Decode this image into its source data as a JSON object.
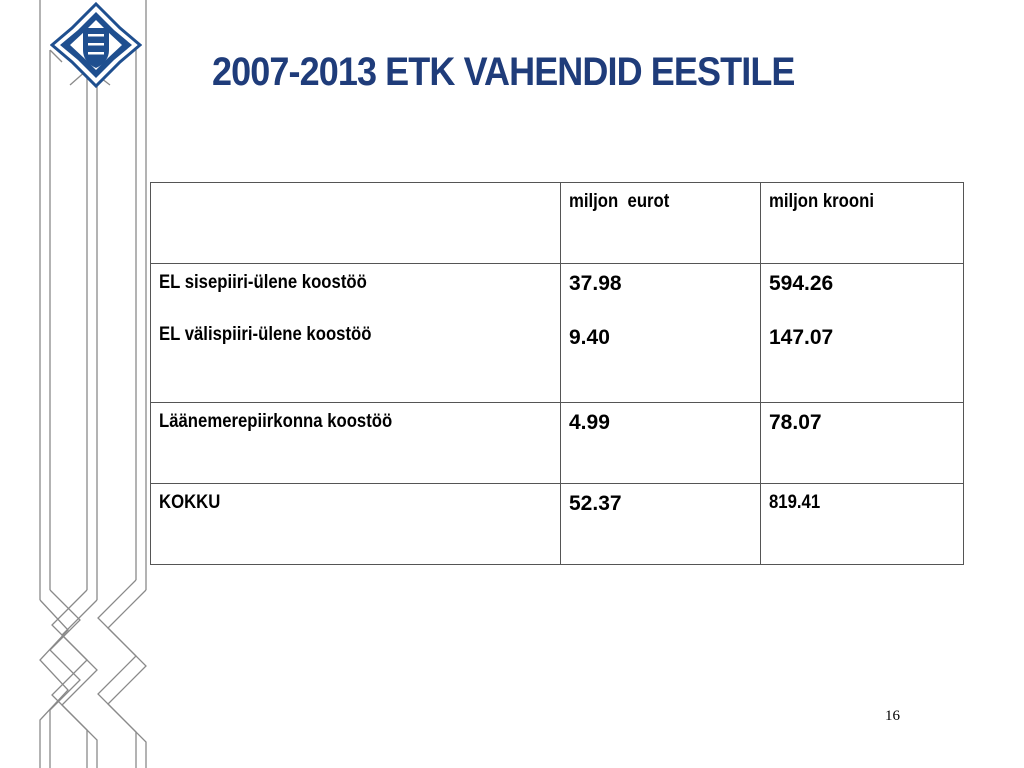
{
  "slide": {
    "title": "2007-2013 ETK VAHENDID EESTILE",
    "page_number": "16"
  },
  "table": {
    "headers": [
      "",
      "miljon  eurot",
      "miljon krooni"
    ],
    "rows": [
      {
        "labels": [
          "EL sisepiiri-ülene koostöö",
          "EL välispiiri-ülene koostöö"
        ],
        "eur": [
          "37.98",
          "9.40"
        ],
        "eek": [
          "594.26",
          "147.07"
        ]
      },
      {
        "labels": [
          "Läänemerepiirkonna koostöö"
        ],
        "eur": [
          "4.99"
        ],
        "eek": [
          "78.07"
        ]
      },
      {
        "labels": [
          "KOKKU"
        ],
        "eur": [
          "52.37"
        ],
        "eek": [
          "819.41"
        ]
      }
    ]
  },
  "colors": {
    "title": "#1f3c7a",
    "logo_blue": "#1f4f8f",
    "ornament_line": "#8a8a8a"
  },
  "icons": {
    "logo": "estonian-coat-of-arms-emblem-icon",
    "decor": "ornamental-border-lines"
  }
}
